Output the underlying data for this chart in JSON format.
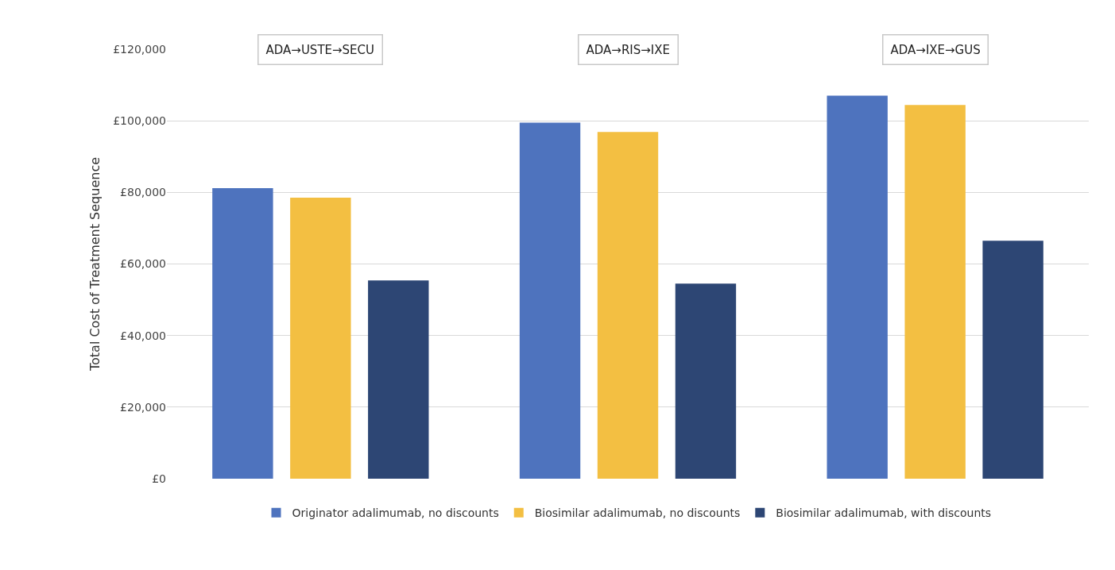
{
  "chart_data": {
    "type": "bar",
    "ylabel": "Total Cost of Treatment Sequence",
    "categories": [
      "ADA→USTE→SECU",
      "ADA→RIS→IXE",
      "ADA→IXE→GUS"
    ],
    "series": [
      {
        "name": "Originator adalimumab, no discounts",
        "color": "#4e73be",
        "values": [
          81200,
          99500,
          107000
        ]
      },
      {
        "name": "Biosimilar adalimumab, no discounts",
        "color": "#f3bf42",
        "values": [
          78500,
          96900,
          104400
        ]
      },
      {
        "name": "Biosimilar adalimumab, with discounts",
        "color": "#2d4674",
        "values": [
          55400,
          54500,
          66500
        ]
      }
    ],
    "ylim": [
      0,
      120000
    ],
    "yticks": [
      {
        "value": 0,
        "label": "£0"
      },
      {
        "value": 20000,
        "label": "£20,000"
      },
      {
        "value": 40000,
        "label": "£40,000"
      },
      {
        "value": 60000,
        "label": "£60,000"
      },
      {
        "value": 80000,
        "label": "£80,000"
      },
      {
        "value": 100000,
        "label": "£100,000"
      },
      {
        "value": 120000,
        "label": "£120,000"
      }
    ],
    "grid": "y",
    "legend": "bottom"
  }
}
